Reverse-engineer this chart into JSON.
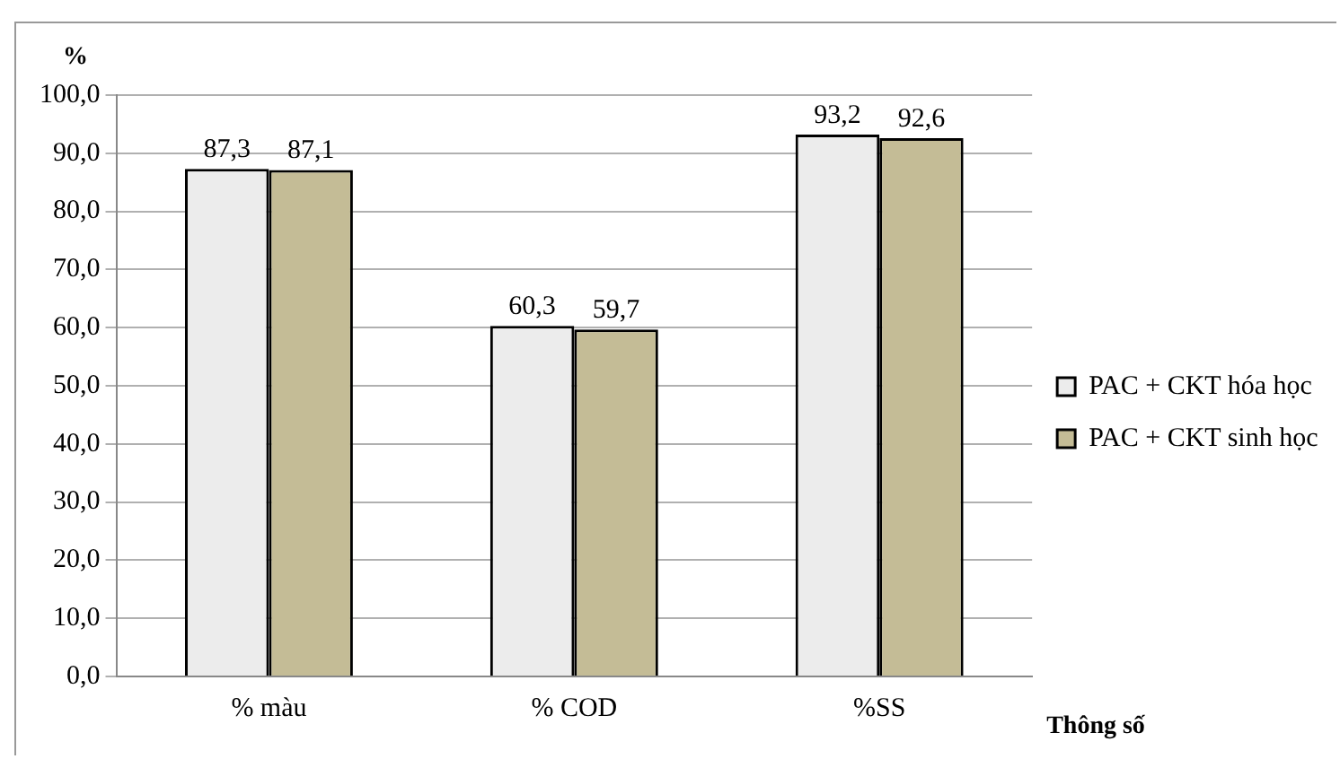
{
  "chart_data": {
    "type": "bar",
    "ylabel": "%",
    "xlabel": "Thông số",
    "categories": [
      "% màu",
      "% COD",
      "%SS"
    ],
    "series": [
      {
        "name": "PAC + CKT hóa học",
        "color": "#ececec",
        "values": [
          87.3,
          60.3,
          93.2
        ],
        "value_labels": [
          "87,3",
          "60,3",
          "93,2"
        ]
      },
      {
        "name": "PAC + CKT sinh học",
        "color": "#c4bc96",
        "values": [
          87.1,
          59.7,
          92.6
        ],
        "value_labels": [
          "87,1",
          "59,7",
          "92,6"
        ]
      }
    ],
    "ylim": [
      0,
      100
    ],
    "yticks": [
      {
        "value": 0,
        "label": "0,0"
      },
      {
        "value": 10,
        "label": "10,0"
      },
      {
        "value": 20,
        "label": "20,0"
      },
      {
        "value": 30,
        "label": "30,0"
      },
      {
        "value": 40,
        "label": "40,0"
      },
      {
        "value": 50,
        "label": "50,0"
      },
      {
        "value": 60,
        "label": "60,0"
      },
      {
        "value": 70,
        "label": "70,0"
      },
      {
        "value": 80,
        "label": "80,0"
      },
      {
        "value": 90,
        "label": "90,0"
      },
      {
        "value": 100,
        "label": "100,0"
      }
    ],
    "grid": "y",
    "legend": "right"
  }
}
